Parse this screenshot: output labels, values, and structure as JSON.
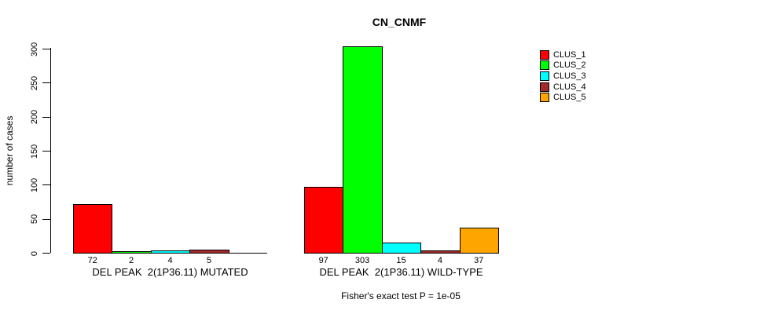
{
  "chart_data": {
    "type": "bar",
    "title": "CN_CNMF",
    "ylabel": "number of cases",
    "ylim": [
      0,
      300
    ],
    "yticks": [
      0,
      50,
      100,
      150,
      200,
      250,
      300
    ],
    "grid": false,
    "legend_position": "top-right-inside",
    "series_names": [
      "CLUS_1",
      "CLUS_2",
      "CLUS_3",
      "CLUS_4",
      "CLUS_5"
    ],
    "series_colors": [
      "#FF0000",
      "#00FF00",
      "#00FFFF",
      "#A52A2A",
      "#FFA500"
    ],
    "groups": [
      {
        "label": "DEL PEAK  2(1P36.11) MUTATED",
        "values": [
          72,
          2,
          4,
          5,
          0
        ],
        "value_labels": [
          "72",
          "2",
          "4",
          "5",
          ""
        ]
      },
      {
        "label": "DEL PEAK  2(1P36.11) WILD-TYPE",
        "values": [
          97,
          303,
          15,
          4,
          37
        ],
        "value_labels": [
          "97",
          "303",
          "15",
          "4",
          "37"
        ]
      }
    ],
    "annotation": "Fisher's exact test P = 1e-05"
  }
}
